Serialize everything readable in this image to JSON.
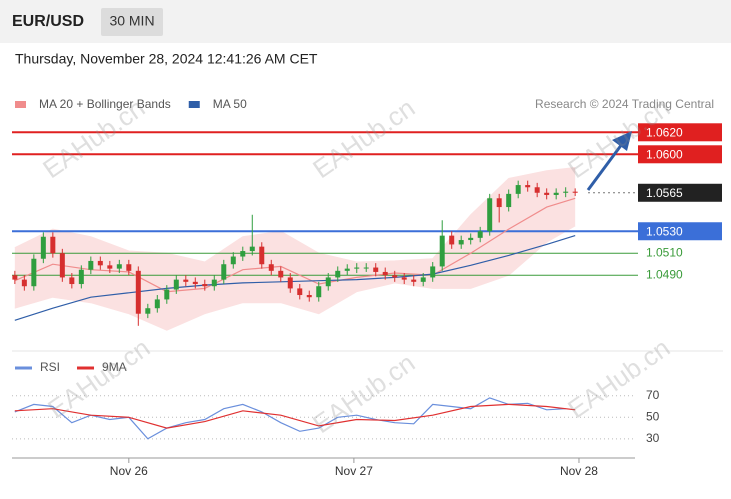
{
  "header": {
    "symbol": "EUR/USD",
    "timeframe": "30 MIN",
    "datetime": "Thursday, November 28, 2024 12:41:26 AM CET",
    "watermark": "EAHub.cn"
  },
  "chart_data": [
    {
      "type": "candlestick",
      "x": [
        0,
        1,
        2,
        3,
        4,
        5,
        6,
        7,
        8,
        9,
        10,
        11,
        12,
        13,
        14,
        15,
        16,
        17,
        18,
        19,
        20,
        21,
        22,
        23,
        24,
        25,
        26,
        27,
        28,
        29,
        30,
        31,
        32,
        33,
        34,
        35,
        36,
        37,
        38,
        39,
        40,
        41,
        42,
        43,
        44,
        45,
        46,
        47,
        48,
        49,
        50,
        51,
        52,
        53,
        54,
        55,
        56,
        57,
        58,
        59
      ],
      "open": [
        1.049,
        1.0486,
        1.048,
        1.0505,
        1.0525,
        1.051,
        1.0488,
        1.0482,
        1.0495,
        1.0503,
        1.0499,
        1.0496,
        1.05,
        1.0494,
        1.0455,
        1.046,
        1.0468,
        1.0477,
        1.0486,
        1.0484,
        1.0482,
        1.048,
        1.0486,
        1.05,
        1.0507,
        1.0512,
        1.0516,
        1.05,
        1.0494,
        1.0488,
        1.0478,
        1.0472,
        1.047,
        1.048,
        1.0488,
        1.0494,
        1.0496,
        1.0497,
        1.0497,
        1.0493,
        1.049,
        1.0488,
        1.0486,
        1.0484,
        1.0488,
        1.0498,
        1.0526,
        1.0518,
        1.0522,
        1.0524,
        1.053,
        1.056,
        1.0552,
        1.0564,
        1.0572,
        1.057,
        1.0565,
        1.0563,
        1.0565,
        1.0566
      ],
      "high": [
        1.0494,
        1.049,
        1.0509,
        1.0529,
        1.0529,
        1.0514,
        1.0492,
        1.0499,
        1.0507,
        1.0507,
        1.0503,
        1.0504,
        1.0504,
        1.0498,
        1.0464,
        1.0472,
        1.0481,
        1.049,
        1.049,
        1.0488,
        1.0486,
        1.049,
        1.0504,
        1.0511,
        1.0516,
        1.0545,
        1.052,
        1.0504,
        1.0498,
        1.0492,
        1.0482,
        1.0476,
        1.0484,
        1.0492,
        1.0498,
        1.05,
        1.0501,
        1.0501,
        1.0501,
        1.0497,
        1.0494,
        1.0492,
        1.049,
        1.0492,
        1.0502,
        1.054,
        1.053,
        1.0526,
        1.0528,
        1.0534,
        1.0564,
        1.0564,
        1.0568,
        1.0576,
        1.0576,
        1.0574,
        1.0569,
        1.0569,
        1.057,
        1.0569
      ],
      "low": [
        1.0482,
        1.0476,
        1.0476,
        1.0501,
        1.0506,
        1.0484,
        1.0478,
        1.0478,
        1.0491,
        1.0495,
        1.0492,
        1.0492,
        1.049,
        1.0444,
        1.0451,
        1.0456,
        1.0464,
        1.0473,
        1.048,
        1.0478,
        1.0476,
        1.0476,
        1.0482,
        1.0496,
        1.0503,
        1.0508,
        1.0496,
        1.049,
        1.0484,
        1.0474,
        1.0468,
        1.0466,
        1.0466,
        1.0476,
        1.0484,
        1.049,
        1.0492,
        1.0493,
        1.0489,
        1.0486,
        1.0484,
        1.0482,
        1.048,
        1.048,
        1.0484,
        1.0494,
        1.0514,
        1.0514,
        1.0518,
        1.052,
        1.0526,
        1.0538,
        1.0548,
        1.056,
        1.0566,
        1.0561,
        1.0559,
        1.0559,
        1.0561,
        1.0562
      ],
      "close": [
        1.0486,
        1.048,
        1.0505,
        1.0525,
        1.051,
        1.0488,
        1.0482,
        1.0495,
        1.0503,
        1.0499,
        1.0496,
        1.05,
        1.0494,
        1.0455,
        1.046,
        1.0468,
        1.0477,
        1.0486,
        1.0484,
        1.0482,
        1.048,
        1.0486,
        1.05,
        1.0507,
        1.0512,
        1.0516,
        1.05,
        1.0494,
        1.0488,
        1.0478,
        1.0472,
        1.047,
        1.048,
        1.0488,
        1.0494,
        1.0496,
        1.0497,
        1.0497,
        1.0493,
        1.049,
        1.0488,
        1.0486,
        1.0484,
        1.0488,
        1.0498,
        1.0526,
        1.0518,
        1.0522,
        1.0524,
        1.053,
        1.056,
        1.0552,
        1.0564,
        1.0572,
        1.057,
        1.0565,
        1.0563,
        1.0565,
        1.0566,
        1.0565
      ],
      "up_color": "#2f9e3f",
      "down_color": "#d62f2f",
      "series": [
        {
          "name": "MA 20 + Bollinger Bands",
          "color": "#f08c8c",
          "x": [
            0,
            4,
            8,
            12,
            16,
            20,
            24,
            28,
            32,
            36,
            40,
            44,
            48,
            52,
            56,
            59
          ],
          "values": [
            1.0485,
            1.05,
            1.0495,
            1.0493,
            1.0475,
            1.0478,
            1.0495,
            1.0498,
            1.0482,
            1.0488,
            1.0492,
            1.049,
            1.051,
            1.0532,
            1.0552,
            1.056
          ]
        },
        {
          "name": "MA 50",
          "color": "#2f5ea8",
          "x": [
            0,
            4,
            8,
            12,
            16,
            20,
            24,
            28,
            32,
            36,
            40,
            44,
            48,
            52,
            56,
            59
          ],
          "values": [
            1.0449,
            1.046,
            1.047,
            1.0474,
            1.0478,
            1.0481,
            1.0483,
            1.0484,
            1.0485,
            1.0486,
            1.0488,
            1.0491,
            1.0499,
            1.0508,
            1.0518,
            1.0526
          ]
        }
      ],
      "bands": {
        "color": "#fbe1e1",
        "x": [
          0,
          4,
          8,
          12,
          16,
          20,
          24,
          28,
          32,
          36,
          40,
          44,
          48,
          52,
          56,
          59
        ],
        "upper": [
          1.0515,
          1.0532,
          1.0525,
          1.0512,
          1.051,
          1.0502,
          1.0525,
          1.053,
          1.051,
          1.0502,
          1.0503,
          1.0505,
          1.0545,
          1.0578,
          1.0585,
          1.0588
        ],
        "lower": [
          1.046,
          1.047,
          1.0465,
          1.0455,
          1.044,
          1.0455,
          1.0465,
          1.0465,
          1.0455,
          1.0475,
          1.0483,
          1.0478,
          1.0478,
          1.049,
          1.052,
          1.0535
        ]
      },
      "levels": [
        {
          "value": 1.062,
          "label": "1.0620",
          "color": "#e02020",
          "line": "solid",
          "label_style": "box"
        },
        {
          "value": 1.06,
          "label": "1.0600",
          "color": "#e02020",
          "line": "solid",
          "label_style": "box"
        },
        {
          "value": 1.0565,
          "label": "1.0565",
          "color": "#222222",
          "line": "dotted",
          "label_style": "box"
        },
        {
          "value": 1.053,
          "label": "1.0530",
          "color": "#3b6fd8",
          "line": "solid",
          "label_style": "box"
        },
        {
          "value": 1.051,
          "label": "1.0510",
          "color": "#3a9b3a",
          "line": "solid",
          "label_style": "text"
        },
        {
          "value": 1.049,
          "label": "1.0490",
          "color": "#3a9b3a",
          "line": "solid",
          "label_style": "text"
        }
      ],
      "xlim": [
        -0.3,
        65.3
      ],
      "ylim": [
        1.0422,
        1.0633
      ],
      "credit": "Research © 2024 Trading Central"
    },
    {
      "type": "line",
      "series": [
        {
          "name": "RSI",
          "color": "#6a8fdc",
          "x": [
            0,
            2,
            4,
            6,
            8,
            10,
            12,
            14,
            16,
            18,
            20,
            22,
            24,
            26,
            28,
            30,
            32,
            34,
            36,
            38,
            40,
            42,
            44,
            46,
            48,
            50,
            52,
            54,
            56,
            58
          ],
          "values": [
            55,
            62,
            60,
            45,
            52,
            48,
            50,
            30,
            40,
            45,
            48,
            58,
            62,
            55,
            45,
            37,
            40,
            50,
            52,
            48,
            45,
            44,
            62,
            60,
            58,
            68,
            62,
            63,
            57,
            58
          ]
        },
        {
          "name": "9MA",
          "color": "#e03030",
          "x": [
            0,
            4,
            8,
            12,
            16,
            20,
            24,
            28,
            32,
            36,
            40,
            44,
            48,
            52,
            56,
            59
          ],
          "values": [
            56,
            58,
            52,
            50,
            40,
            46,
            56,
            52,
            42,
            48,
            47,
            52,
            60,
            62,
            60,
            57
          ]
        }
      ],
      "xlim": [
        -0.3,
        65.3
      ],
      "ylim": [
        15,
        80
      ],
      "yticks": [
        30,
        50,
        70
      ],
      "xticks": [
        {
          "value": 12,
          "label": "Nov 26"
        },
        {
          "value": 35.7,
          "label": "Nov 27"
        },
        {
          "value": 59.4,
          "label": "Nov 28"
        }
      ]
    }
  ]
}
